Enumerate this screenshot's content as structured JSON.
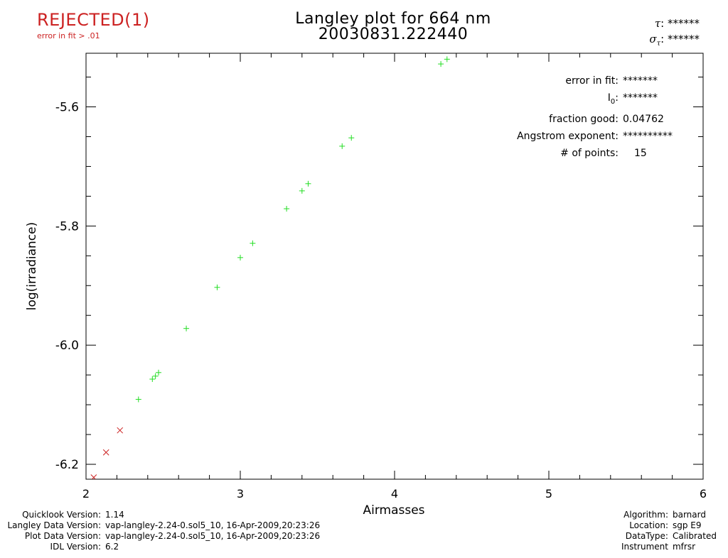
{
  "status": {
    "label": "REJECTED(1)",
    "note": "error in fit > .01",
    "color": "#cc2222"
  },
  "header": {
    "title_line1": "Langley plot for 664 nm",
    "title_line2": "20030831.222440"
  },
  "tau": {
    "tau_symbol": "τ",
    "tau_suffix": ": ******",
    "sigma_symbol": "σ",
    "sigma_subscript": "τ",
    "sigma_suffix": ": ******"
  },
  "fit_info": {
    "error_label": "error in fit:",
    "error_value": "*******",
    "i0_label": "I",
    "i0_subscript": "0",
    "i0_colon": ":",
    "i0_value": "*******",
    "fraction_label": "fraction good:",
    "fraction_value": "0.04762",
    "angstrom_label": "Angstrom exponent:",
    "angstrom_value": "**********",
    "points_label": "# of points:",
    "points_value": "15"
  },
  "footer": {
    "left": [
      {
        "label": "Quicklook Version:",
        "value": "1.14"
      },
      {
        "label": "Langley Data Version:",
        "value": "vap-langley-2.24-0.sol5_10, 16-Apr-2009,20:23:26"
      },
      {
        "label": "Plot Data Version:",
        "value": "vap-langley-2.24-0.sol5_10, 16-Apr-2009,20:23:26"
      },
      {
        "label": "IDL Version:",
        "value": "6.2"
      }
    ],
    "right": [
      {
        "label": "Algorithm:",
        "value": "barnard"
      },
      {
        "label": "Location:",
        "value": "sgp E9"
      },
      {
        "label": "DataType:",
        "value": "Calibrated"
      },
      {
        "label": "Instrument",
        "value": "mfrsr"
      }
    ]
  },
  "chart_data": {
    "type": "scatter",
    "title": "Langley plot for 664 nm",
    "xlabel": "Airmasses",
    "ylabel": "log(irradiance)",
    "xlim": [
      2,
      6
    ],
    "ylim": [
      -6.225,
      -5.51
    ],
    "x_ticks": [
      2,
      3,
      4,
      5,
      6
    ],
    "x_tick_labels": [
      "2",
      "3",
      "4",
      "5",
      "6"
    ],
    "y_ticks": [
      -5.6,
      -5.8,
      -6.0,
      -6.2
    ],
    "y_tick_labels": [
      "-5.6",
      "-5.8",
      "-6.0",
      "-6.2"
    ],
    "grid": false,
    "series": [
      {
        "marker": "plus",
        "color": "#22dd22",
        "x": [
          2.34,
          2.43,
          2.45,
          2.47,
          2.65,
          2.85,
          3.0,
          3.08,
          3.3,
          3.4,
          3.44,
          3.66,
          3.72,
          4.3,
          4.34
        ],
        "y": [
          -6.091,
          -6.057,
          -6.052,
          -6.046,
          -5.972,
          -5.903,
          -5.853,
          -5.829,
          -5.771,
          -5.741,
          -5.729,
          -5.666,
          -5.652,
          -5.528,
          -5.52
        ]
      },
      {
        "marker": "x",
        "color": "#cc2222",
        "x": [
          2.05,
          2.13,
          2.22
        ],
        "y": [
          -6.222,
          -6.18,
          -6.143
        ]
      }
    ]
  }
}
